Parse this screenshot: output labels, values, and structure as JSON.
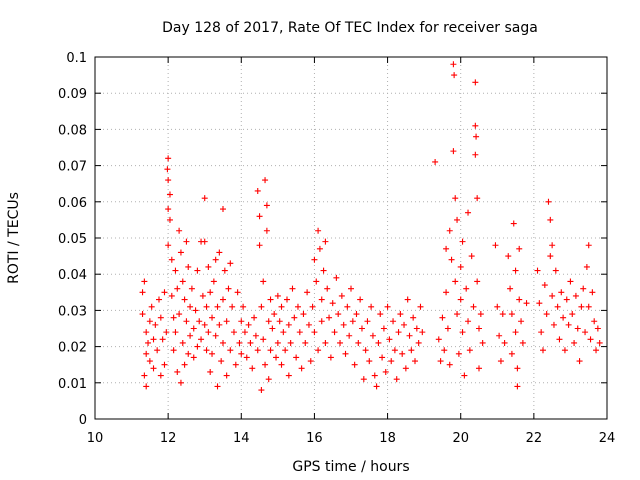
{
  "chart_data": {
    "type": "scatter",
    "title": "Day 128 of 2017, Rate Of TEC Index for receiver saga",
    "xlabel": "GPS time / hours",
    "ylabel": "ROTI / TECUs",
    "xlim": [
      10,
      24
    ],
    "ylim": [
      0,
      0.1
    ],
    "grid": true,
    "x_ticks": [
      10,
      12,
      14,
      16,
      18,
      20,
      22,
      24
    ],
    "x_tick_labels": [
      "10",
      "12",
      "14",
      "16",
      "18",
      "20",
      "22",
      "24"
    ],
    "y_ticks": [
      0,
      0.01,
      0.02,
      0.03,
      0.04,
      0.05,
      0.06,
      0.07,
      0.08,
      0.09,
      0.1
    ],
    "y_tick_labels": [
      "0",
      "0.01",
      "0.02",
      "0.03",
      "0.04",
      "0.05",
      "0.06",
      "0.07",
      "0.08",
      "0.09",
      "0.1"
    ],
    "marker": "+",
    "color": "#ff0000",
    "series": [
      {
        "name": "ROTI",
        "points": [
          [
            11.3,
            0.035
          ],
          [
            11.3,
            0.029
          ],
          [
            11.35,
            0.038
          ],
          [
            11.4,
            0.024
          ],
          [
            11.4,
            0.018
          ],
          [
            11.35,
            0.012
          ],
          [
            11.4,
            0.009
          ],
          [
            11.45,
            0.021
          ],
          [
            11.5,
            0.027
          ],
          [
            11.5,
            0.016
          ],
          [
            11.55,
            0.031
          ],
          [
            11.6,
            0.022
          ],
          [
            11.6,
            0.014
          ],
          [
            11.65,
            0.026
          ],
          [
            11.7,
            0.019
          ],
          [
            11.75,
            0.033
          ],
          [
            11.8,
            0.028
          ],
          [
            11.8,
            0.012
          ],
          [
            11.85,
            0.022
          ],
          [
            11.9,
            0.035
          ],
          [
            11.9,
            0.015
          ],
          [
            11.95,
            0.024
          ],
          [
            12.0,
            0.072
          ],
          [
            11.98,
            0.069
          ],
          [
            12.0,
            0.066
          ],
          [
            12.0,
            0.058
          ],
          [
            12.05,
            0.062
          ],
          [
            12.05,
            0.055
          ],
          [
            12.0,
            0.048
          ],
          [
            12.1,
            0.044
          ],
          [
            12.1,
            0.034
          ],
          [
            12.15,
            0.028
          ],
          [
            12.15,
            0.019
          ],
          [
            12.2,
            0.041
          ],
          [
            12.2,
            0.024
          ],
          [
            12.25,
            0.013
          ],
          [
            12.25,
            0.036
          ],
          [
            12.3,
            0.052
          ],
          [
            12.3,
            0.029
          ],
          [
            12.35,
            0.01
          ],
          [
            12.35,
            0.046
          ],
          [
            12.4,
            0.038
          ],
          [
            12.4,
            0.021
          ],
          [
            12.45,
            0.033
          ],
          [
            12.45,
            0.015
          ],
          [
            12.5,
            0.049
          ],
          [
            12.5,
            0.027
          ],
          [
            12.55,
            0.042
          ],
          [
            12.55,
            0.018
          ],
          [
            12.6,
            0.031
          ],
          [
            12.6,
            0.023
          ],
          [
            12.65,
            0.036
          ],
          [
            12.7,
            0.025
          ],
          [
            12.7,
            0.017
          ],
          [
            12.75,
            0.03
          ],
          [
            12.8,
            0.041
          ],
          [
            12.8,
            0.02
          ],
          [
            12.85,
            0.027
          ],
          [
            12.9,
            0.049
          ],
          [
            12.9,
            0.022
          ],
          [
            12.95,
            0.034
          ],
          [
            13.0,
            0.061
          ],
          [
            13.0,
            0.049
          ],
          [
            13.0,
            0.026
          ],
          [
            13.05,
            0.031
          ],
          [
            13.05,
            0.019
          ],
          [
            13.1,
            0.042
          ],
          [
            13.1,
            0.024
          ],
          [
            13.15,
            0.035
          ],
          [
            13.15,
            0.013
          ],
          [
            13.2,
            0.028
          ],
          [
            13.2,
            0.018
          ],
          [
            13.25,
            0.038
          ],
          [
            13.3,
            0.044
          ],
          [
            13.3,
            0.023
          ],
          [
            13.35,
            0.031
          ],
          [
            13.35,
            0.009
          ],
          [
            13.4,
            0.046
          ],
          [
            13.4,
            0.026
          ],
          [
            13.45,
            0.016
          ],
          [
            13.5,
            0.058
          ],
          [
            13.5,
            0.033
          ],
          [
            13.5,
            0.021
          ],
          [
            13.55,
            0.041
          ],
          [
            13.6,
            0.027
          ],
          [
            13.6,
            0.012
          ],
          [
            13.65,
            0.036
          ],
          [
            13.7,
            0.043
          ],
          [
            13.7,
            0.019
          ],
          [
            13.75,
            0.031
          ],
          [
            13.8,
            0.024
          ],
          [
            13.85,
            0.015
          ],
          [
            13.9,
            0.035
          ],
          [
            13.95,
            0.021
          ],
          [
            14.0,
            0.027
          ],
          [
            14.0,
            0.018
          ],
          [
            14.05,
            0.031
          ],
          [
            14.1,
            0.024
          ],
          [
            14.15,
            0.017
          ],
          [
            14.2,
            0.026
          ],
          [
            14.25,
            0.021
          ],
          [
            14.3,
            0.014
          ],
          [
            14.35,
            0.028
          ],
          [
            14.4,
            0.023
          ],
          [
            14.45,
            0.019
          ],
          [
            14.45,
            0.063
          ],
          [
            14.5,
            0.056
          ],
          [
            14.5,
            0.048
          ],
          [
            14.55,
            0.031
          ],
          [
            14.55,
            0.008
          ],
          [
            14.6,
            0.022
          ],
          [
            14.6,
            0.038
          ],
          [
            14.65,
            0.015
          ],
          [
            14.65,
            0.066
          ],
          [
            14.7,
            0.059
          ],
          [
            14.7,
            0.052
          ],
          [
            14.75,
            0.027
          ],
          [
            14.75,
            0.011
          ],
          [
            14.8,
            0.033
          ],
          [
            14.8,
            0.019
          ],
          [
            14.85,
            0.025
          ],
          [
            14.9,
            0.029
          ],
          [
            14.95,
            0.017
          ],
          [
            15.0,
            0.034
          ],
          [
            15.0,
            0.021
          ],
          [
            15.05,
            0.027
          ],
          [
            15.1,
            0.015
          ],
          [
            15.1,
            0.031
          ],
          [
            15.15,
            0.024
          ],
          [
            15.2,
            0.019
          ],
          [
            15.25,
            0.033
          ],
          [
            15.3,
            0.026
          ],
          [
            15.3,
            0.012
          ],
          [
            15.35,
            0.021
          ],
          [
            15.4,
            0.036
          ],
          [
            15.45,
            0.028
          ],
          [
            15.5,
            0.017
          ],
          [
            15.55,
            0.031
          ],
          [
            15.6,
            0.024
          ],
          [
            15.65,
            0.014
          ],
          [
            15.7,
            0.029
          ],
          [
            15.75,
            0.021
          ],
          [
            15.8,
            0.035
          ],
          [
            15.85,
            0.026
          ],
          [
            15.9,
            0.016
          ],
          [
            15.95,
            0.031
          ],
          [
            16.0,
            0.044
          ],
          [
            16.0,
            0.024
          ],
          [
            16.05,
            0.038
          ],
          [
            16.1,
            0.019
          ],
          [
            16.1,
            0.052
          ],
          [
            16.15,
            0.047
          ],
          [
            16.2,
            0.033
          ],
          [
            16.2,
            0.027
          ],
          [
            16.25,
            0.041
          ],
          [
            16.3,
            0.021
          ],
          [
            16.3,
            0.049
          ],
          [
            16.35,
            0.036
          ],
          [
            16.4,
            0.028
          ],
          [
            16.45,
            0.017
          ],
          [
            16.5,
            0.032
          ],
          [
            16.55,
            0.024
          ],
          [
            16.6,
            0.039
          ],
          [
            16.65,
            0.029
          ],
          [
            16.7,
            0.021
          ],
          [
            16.75,
            0.034
          ],
          [
            16.8,
            0.026
          ],
          [
            16.85,
            0.018
          ],
          [
            16.9,
            0.031
          ],
          [
            16.95,
            0.023
          ],
          [
            17.0,
            0.036
          ],
          [
            17.05,
            0.027
          ],
          [
            17.1,
            0.015
          ],
          [
            17.15,
            0.029
          ],
          [
            17.2,
            0.021
          ],
          [
            17.25,
            0.033
          ],
          [
            17.3,
            0.025
          ],
          [
            17.35,
            0.011
          ],
          [
            17.4,
            0.019
          ],
          [
            17.45,
            0.027
          ],
          [
            17.5,
            0.016
          ],
          [
            17.55,
            0.031
          ],
          [
            17.6,
            0.023
          ],
          [
            17.65,
            0.012
          ],
          [
            17.7,
            0.009
          ],
          [
            17.75,
            0.021
          ],
          [
            17.8,
            0.029
          ],
          [
            17.85,
            0.017
          ],
          [
            17.9,
            0.025
          ],
          [
            17.95,
            0.013
          ],
          [
            18.0,
            0.031
          ],
          [
            18.05,
            0.022
          ],
          [
            18.1,
            0.016
          ],
          [
            18.15,
            0.027
          ],
          [
            18.2,
            0.019
          ],
          [
            18.25,
            0.011
          ],
          [
            18.3,
            0.024
          ],
          [
            18.35,
            0.029
          ],
          [
            18.4,
            0.018
          ],
          [
            18.45,
            0.026
          ],
          [
            18.5,
            0.014
          ],
          [
            18.55,
            0.033
          ],
          [
            18.6,
            0.023
          ],
          [
            18.65,
            0.019
          ],
          [
            18.7,
            0.028
          ],
          [
            18.75,
            0.016
          ],
          [
            18.8,
            0.025
          ],
          [
            18.85,
            0.021
          ],
          [
            18.9,
            0.031
          ],
          [
            18.95,
            0.024
          ],
          [
            19.3,
            0.071
          ],
          [
            19.4,
            0.022
          ],
          [
            19.45,
            0.016
          ],
          [
            19.5,
            0.028
          ],
          [
            19.55,
            0.019
          ],
          [
            19.6,
            0.047
          ],
          [
            19.6,
            0.035
          ],
          [
            19.65,
            0.025
          ],
          [
            19.7,
            0.052
          ],
          [
            19.7,
            0.015
          ],
          [
            19.75,
            0.044
          ],
          [
            19.8,
            0.098
          ],
          [
            19.82,
            0.095
          ],
          [
            19.8,
            0.074
          ],
          [
            19.85,
            0.061
          ],
          [
            19.85,
            0.038
          ],
          [
            19.9,
            0.029
          ],
          [
            19.9,
            0.055
          ],
          [
            19.95,
            0.018
          ],
          [
            20.0,
            0.042
          ],
          [
            20.0,
            0.033
          ],
          [
            20.05,
            0.024
          ],
          [
            20.05,
            0.049
          ],
          [
            20.1,
            0.012
          ],
          [
            20.15,
            0.036
          ],
          [
            20.2,
            0.027
          ],
          [
            20.2,
            0.057
          ],
          [
            20.25,
            0.019
          ],
          [
            20.3,
            0.045
          ],
          [
            20.35,
            0.031
          ],
          [
            20.4,
            0.093
          ],
          [
            20.4,
            0.081
          ],
          [
            20.42,
            0.078
          ],
          [
            20.4,
            0.073
          ],
          [
            20.45,
            0.061
          ],
          [
            20.45,
            0.038
          ],
          [
            20.5,
            0.025
          ],
          [
            20.5,
            0.014
          ],
          [
            20.55,
            0.029
          ],
          [
            20.6,
            0.021
          ],
          [
            20.95,
            0.048
          ],
          [
            21.0,
            0.031
          ],
          [
            21.05,
            0.023
          ],
          [
            21.1,
            0.016
          ],
          [
            21.15,
            0.029
          ],
          [
            21.2,
            0.021
          ],
          [
            21.3,
            0.045
          ],
          [
            21.35,
            0.036
          ],
          [
            21.4,
            0.029
          ],
          [
            21.4,
            0.018
          ],
          [
            21.45,
            0.054
          ],
          [
            21.5,
            0.041
          ],
          [
            21.5,
            0.024
          ],
          [
            21.55,
            0.014
          ],
          [
            21.55,
            0.009
          ],
          [
            21.6,
            0.033
          ],
          [
            21.6,
            0.047
          ],
          [
            21.65,
            0.027
          ],
          [
            21.7,
            0.021
          ],
          [
            21.8,
            0.032
          ],
          [
            22.1,
            0.041
          ],
          [
            22.15,
            0.032
          ],
          [
            22.2,
            0.024
          ],
          [
            22.25,
            0.019
          ],
          [
            22.3,
            0.037
          ],
          [
            22.35,
            0.029
          ],
          [
            22.4,
            0.06
          ],
          [
            22.45,
            0.055
          ],
          [
            22.45,
            0.045
          ],
          [
            22.5,
            0.048
          ],
          [
            22.5,
            0.034
          ],
          [
            22.55,
            0.026
          ],
          [
            22.6,
            0.041
          ],
          [
            22.65,
            0.031
          ],
          [
            22.7,
            0.022
          ],
          [
            22.75,
            0.035
          ],
          [
            22.8,
            0.028
          ],
          [
            22.85,
            0.019
          ],
          [
            22.9,
            0.033
          ],
          [
            22.95,
            0.026
          ],
          [
            23.0,
            0.038
          ],
          [
            23.05,
            0.029
          ],
          [
            23.1,
            0.021
          ],
          [
            23.15,
            0.034
          ],
          [
            23.2,
            0.025
          ],
          [
            23.25,
            0.016
          ],
          [
            23.3,
            0.031
          ],
          [
            23.35,
            0.036
          ],
          [
            23.4,
            0.024
          ],
          [
            23.45,
            0.042
          ],
          [
            23.5,
            0.048
          ],
          [
            23.5,
            0.031
          ],
          [
            23.55,
            0.022
          ],
          [
            23.6,
            0.035
          ],
          [
            23.65,
            0.027
          ],
          [
            23.7,
            0.019
          ],
          [
            23.75,
            0.025
          ],
          [
            23.8,
            0.021
          ]
        ]
      }
    ]
  }
}
